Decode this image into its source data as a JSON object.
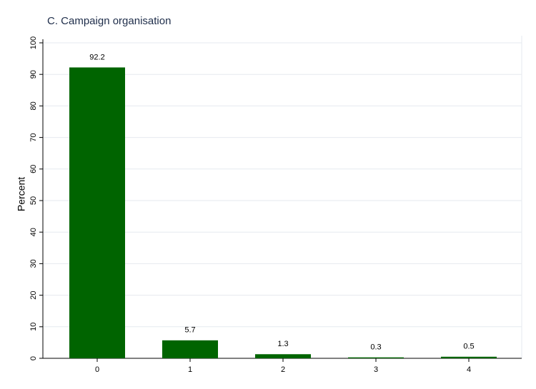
{
  "chart_data": {
    "type": "bar",
    "title": "C. Campaign organisation",
    "y_label": "Percent",
    "categories": [
      "0",
      "1",
      "2",
      "3",
      "4"
    ],
    "values": [
      92.2,
      5.7,
      1.3,
      0.3,
      0.5
    ],
    "color": "#006400",
    "ylim": [
      0,
      100
    ],
    "yticks": [
      0,
      10,
      20,
      30,
      40,
      50,
      60,
      70,
      80,
      90,
      100
    ],
    "grid": true
  }
}
